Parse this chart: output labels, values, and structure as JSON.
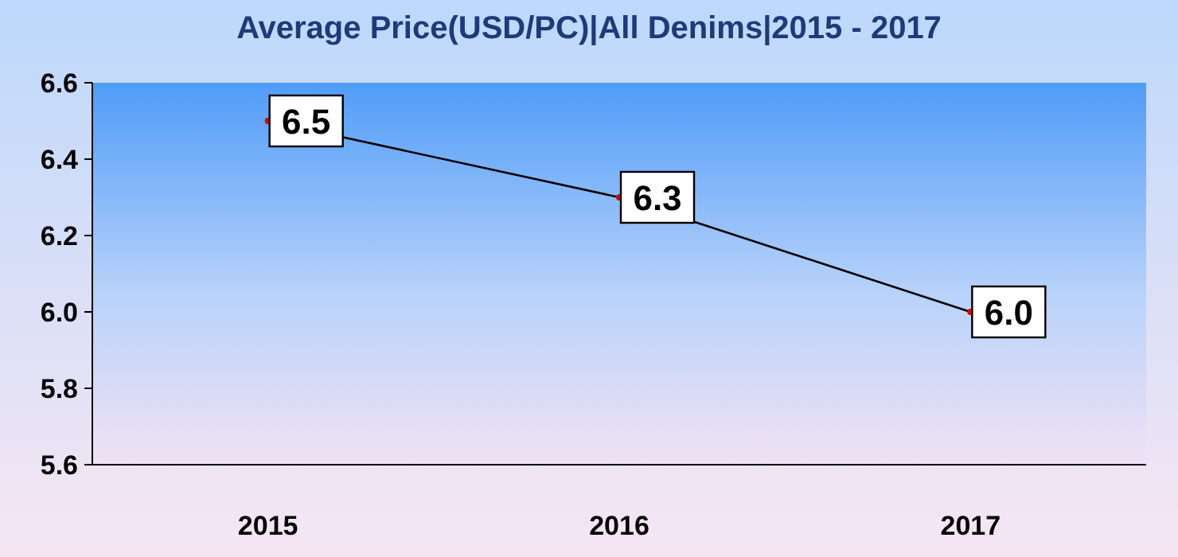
{
  "chart_data": {
    "type": "line",
    "title": "Average Price(USD/PC)|All Denims|2015 - 2017",
    "categories": [
      "2015",
      "2016",
      "2017"
    ],
    "series": [
      {
        "color": "#000000",
        "values": [
          6.5,
          6.3,
          6.0
        ],
        "value_labels": [
          "6.5",
          "6.3",
          "6.0"
        ]
      }
    ],
    "ylim": [
      5.6,
      6.6
    ],
    "yticks": [
      "5.6",
      "5.8",
      "6.0",
      "6.2",
      "6.4",
      "6.6"
    ],
    "grid": false,
    "marker": "circle"
  }
}
